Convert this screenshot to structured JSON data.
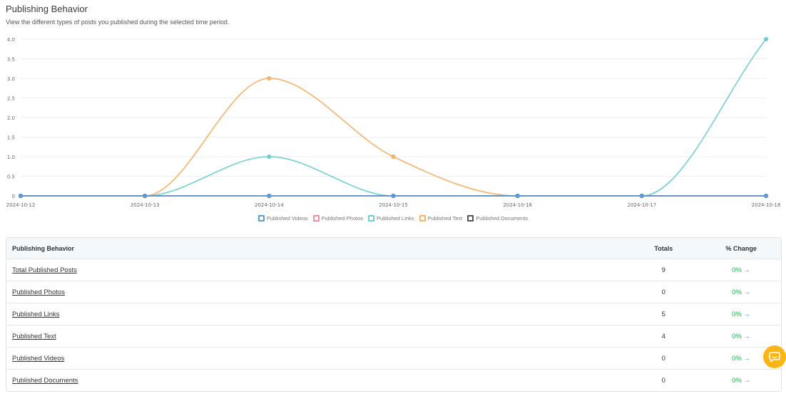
{
  "header": {
    "title": "Publishing Behavior",
    "subtitle": "View the different types of posts you published during the selected time period."
  },
  "chart_data": {
    "type": "line",
    "x": [
      "2024-10-12",
      "2024-10-13",
      "2024-10-14",
      "2024-10-15",
      "2024-10-16",
      "2024-10-17",
      "2024-10-18"
    ],
    "yticks": [
      "0",
      "0.5",
      "1.0",
      "1.5",
      "2.0",
      "2.5",
      "3.0",
      "3.5",
      "4.0"
    ],
    "ylim": [
      0,
      4
    ],
    "grid": true,
    "legend_position": "bottom",
    "series": [
      {
        "name": "Published Videos",
        "color": "#5b9bd5",
        "values": [
          0,
          0,
          0,
          0,
          0,
          0,
          0
        ]
      },
      {
        "name": "Published Photos",
        "color": "#f08ca0",
        "values": [
          0,
          0,
          0,
          0,
          0,
          0,
          0
        ]
      },
      {
        "name": "Published Links",
        "color": "#72cfd1",
        "values": [
          0,
          0,
          1,
          0,
          0,
          0,
          4
        ]
      },
      {
        "name": "Published Text",
        "color": "#f6b26b",
        "values": [
          0,
          0,
          3,
          1,
          0,
          0,
          0
        ]
      },
      {
        "name": "Published Documents",
        "color": "#555555",
        "values": [
          0,
          0,
          0,
          0,
          0,
          0,
          0
        ]
      }
    ]
  },
  "table": {
    "headers": {
      "name": "Publishing Behavior",
      "totals": "Totals",
      "change": "% Change"
    },
    "rows": [
      {
        "name": "Total Published Posts",
        "total": "9",
        "change": "0% →"
      },
      {
        "name": "Published Photos",
        "total": "0",
        "change": "0% →"
      },
      {
        "name": "Published Links",
        "total": "5",
        "change": "0% →"
      },
      {
        "name": "Published Text",
        "total": "4",
        "change": "0% →"
      },
      {
        "name": "Published Videos",
        "total": "0",
        "change": "0% →"
      },
      {
        "name": "Published Documents",
        "total": "0",
        "change": "0% →"
      }
    ]
  },
  "chat": {
    "icon": "chat-bubble-icon",
    "color": "#fbb616"
  }
}
